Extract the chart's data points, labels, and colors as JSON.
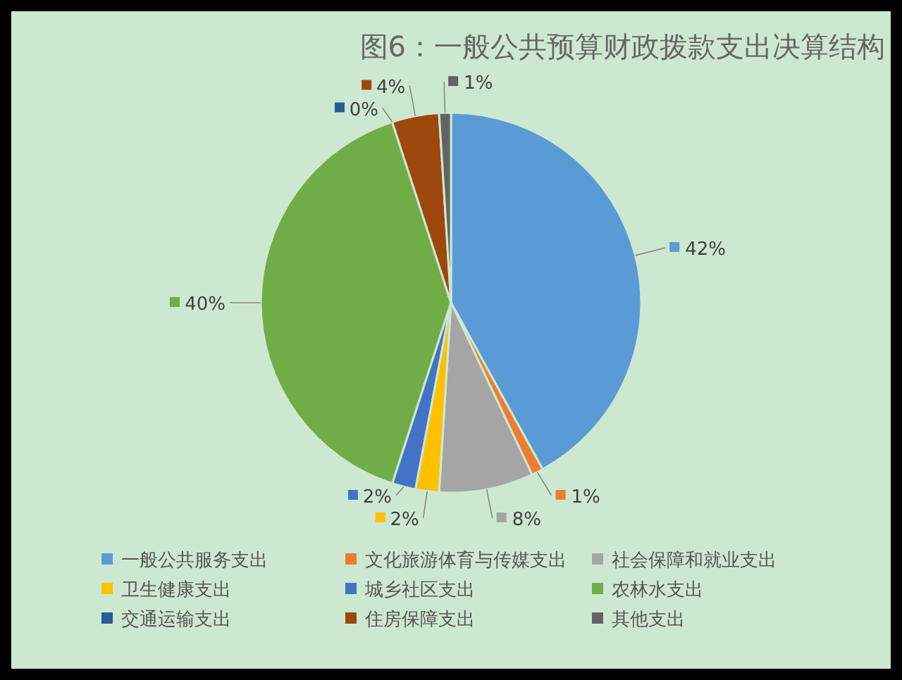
{
  "chart_data": {
    "type": "pie",
    "title": "图6：一般公共预算财政拨款支出决算结构",
    "categories": [
      "一般公共服务支出",
      "文化旅游体育与传媒支出",
      "社会保障和就业支出",
      "卫生健康支出",
      "城乡社区支出",
      "农林水支出",
      "交通运输支出",
      "住房保障支出",
      "其他支出"
    ],
    "values": [
      42,
      1,
      8,
      2,
      2,
      40,
      0,
      4,
      1
    ],
    "colors": [
      "#5b9bd5",
      "#ed7d31",
      "#a5a5a5",
      "#ffc000",
      "#4472c4",
      "#70ad47",
      "#255e91",
      "#9e480e",
      "#636363"
    ],
    "value_labels": [
      "42%",
      "1%",
      "8%",
      "2%",
      "2%",
      "40%",
      "0%",
      "4%",
      "1%"
    ],
    "legend": "bottom"
  }
}
